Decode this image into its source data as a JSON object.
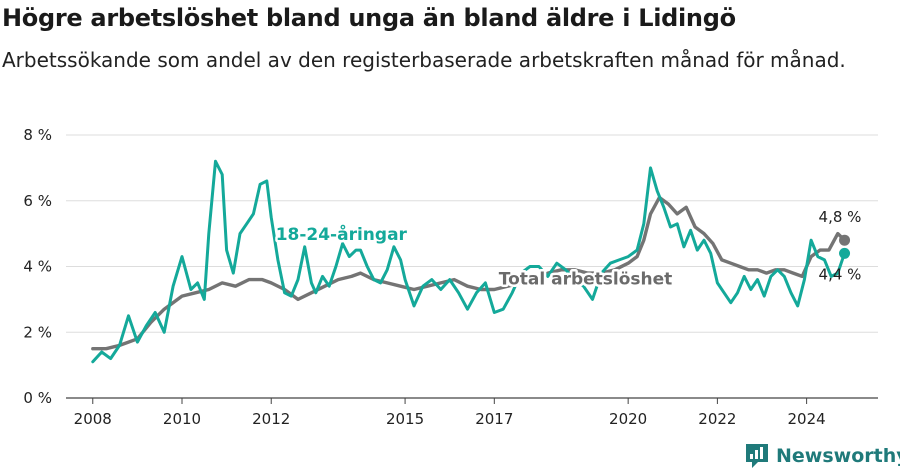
{
  "title": "Högre arbetslöshet bland unga än bland äldre i Lidingö",
  "subtitle": "Arbetssökande som andel av den registerbaserade arbetskraften månad för månad.",
  "brand": {
    "name": "Newsworthy",
    "icon": "newsworthy-logo-icon",
    "color": "#1f7a7a"
  },
  "chart_data": {
    "type": "line",
    "title": "Högre arbetslöshet bland unga än bland äldre i Lidingö",
    "subtitle": "Arbetssökande som andel av den registerbaserade arbetskraften månad för månad.",
    "xlabel": "",
    "ylabel": "",
    "xlim": [
      2007.4,
      2025.6
    ],
    "ylim": [
      0,
      8
    ],
    "x_ticks": [
      2008,
      2010,
      2012,
      2015,
      2017,
      2020,
      2022,
      2024
    ],
    "x_tick_labels": [
      "2008",
      "2010",
      "2012",
      "2015",
      "2017",
      "2020",
      "2022",
      "2024"
    ],
    "y_ticks": [
      0,
      2,
      4,
      6,
      8
    ],
    "y_tick_labels": [
      "0 %",
      "2 %",
      "4 %",
      "6 %",
      "8 %"
    ],
    "grid": "horizontal",
    "series": [
      {
        "name": "18-24-åringar",
        "color": "#14a99a",
        "x": [
          2008.0,
          2008.2,
          2008.4,
          2008.6,
          2008.8,
          2009.0,
          2009.2,
          2009.4,
          2009.6,
          2009.8,
          2010.0,
          2010.2,
          2010.35,
          2010.5,
          2010.6,
          2010.75,
          2010.9,
          2011.0,
          2011.15,
          2011.3,
          2011.45,
          2011.6,
          2011.75,
          2011.9,
          2012.0,
          2012.15,
          2012.3,
          2012.45,
          2012.6,
          2012.75,
          2012.9,
          2013.0,
          2013.15,
          2013.3,
          2013.45,
          2013.6,
          2013.75,
          2013.9,
          2014.0,
          2014.15,
          2014.3,
          2014.45,
          2014.6,
          2014.75,
          2014.9,
          2015.0,
          2015.2,
          2015.4,
          2015.6,
          2015.8,
          2016.0,
          2016.2,
          2016.4,
          2016.6,
          2016.8,
          2017.0,
          2017.2,
          2017.4,
          2017.6,
          2017.8,
          2018.0,
          2018.2,
          2018.4,
          2018.6,
          2018.8,
          2019.0,
          2019.2,
          2019.4,
          2019.6,
          2019.8,
          2020.0,
          2020.2,
          2020.35,
          2020.5,
          2020.65,
          2020.8,
          2020.95,
          2021.1,
          2021.25,
          2021.4,
          2021.55,
          2021.7,
          2021.85,
          2022.0,
          2022.15,
          2022.3,
          2022.45,
          2022.6,
          2022.75,
          2022.9,
          2023.05,
          2023.2,
          2023.35,
          2023.5,
          2023.65,
          2023.8,
          2023.95,
          2024.1,
          2024.25,
          2024.4,
          2024.55,
          2024.7,
          2024.85
        ],
        "values": [
          1.1,
          1.4,
          1.2,
          1.6,
          2.5,
          1.7,
          2.2,
          2.6,
          2.0,
          3.4,
          4.3,
          3.3,
          3.5,
          3.0,
          5.0,
          7.2,
          6.8,
          4.5,
          3.8,
          5.0,
          5.3,
          5.6,
          6.5,
          6.6,
          5.5,
          4.2,
          3.2,
          3.1,
          3.6,
          4.6,
          3.5,
          3.2,
          3.7,
          3.4,
          4.0,
          4.7,
          4.3,
          4.5,
          4.5,
          4.0,
          3.6,
          3.5,
          3.9,
          4.6,
          4.2,
          3.6,
          2.8,
          3.4,
          3.6,
          3.3,
          3.6,
          3.2,
          2.7,
          3.2,
          3.5,
          2.6,
          2.7,
          3.2,
          3.8,
          4.0,
          4.0,
          3.7,
          4.1,
          3.9,
          3.6,
          3.4,
          3.0,
          3.8,
          4.1,
          4.2,
          4.3,
          4.5,
          5.3,
          7.0,
          6.3,
          5.8,
          5.2,
          5.3,
          4.6,
          5.1,
          4.5,
          4.8,
          4.4,
          3.5,
          3.2,
          2.9,
          3.2,
          3.7,
          3.3,
          3.6,
          3.1,
          3.7,
          3.9,
          3.7,
          3.2,
          2.8,
          3.6,
          4.8,
          4.3,
          4.2,
          3.7,
          3.8,
          4.4
        ],
        "end_label": "4,4 %"
      },
      {
        "name": "Total arbetslöshet",
        "color": "#747474",
        "x": [
          2008.0,
          2008.3,
          2008.6,
          2009.0,
          2009.3,
          2009.6,
          2010.0,
          2010.3,
          2010.6,
          2010.9,
          2011.2,
          2011.5,
          2011.8,
          2012.0,
          2012.3,
          2012.6,
          2012.9,
          2013.2,
          2013.5,
          2013.8,
          2014.0,
          2014.3,
          2014.6,
          2014.9,
          2015.2,
          2015.5,
          2015.8,
          2016.1,
          2016.4,
          2016.7,
          2017.0,
          2017.3,
          2017.6,
          2017.9,
          2018.2,
          2018.5,
          2018.8,
          2019.1,
          2019.4,
          2019.7,
          2020.0,
          2020.2,
          2020.35,
          2020.5,
          2020.7,
          2020.9,
          2021.1,
          2021.3,
          2021.5,
          2021.7,
          2021.9,
          2022.1,
          2022.3,
          2022.5,
          2022.7,
          2022.9,
          2023.1,
          2023.3,
          2023.5,
          2023.7,
          2023.9,
          2024.1,
          2024.3,
          2024.5,
          2024.7,
          2024.85
        ],
        "values": [
          1.5,
          1.5,
          1.6,
          1.8,
          2.3,
          2.7,
          3.1,
          3.2,
          3.3,
          3.5,
          3.4,
          3.6,
          3.6,
          3.5,
          3.3,
          3.0,
          3.2,
          3.4,
          3.6,
          3.7,
          3.8,
          3.6,
          3.5,
          3.4,
          3.3,
          3.4,
          3.5,
          3.6,
          3.4,
          3.3,
          3.3,
          3.4,
          3.5,
          3.6,
          3.8,
          3.9,
          3.9,
          3.8,
          3.8,
          3.9,
          4.1,
          4.3,
          4.8,
          5.6,
          6.1,
          5.9,
          5.6,
          5.8,
          5.2,
          5.0,
          4.7,
          4.2,
          4.1,
          4.0,
          3.9,
          3.9,
          3.8,
          3.9,
          3.9,
          3.8,
          3.7,
          4.3,
          4.5,
          4.5,
          5.0,
          4.8
        ],
        "end_label": "4,8 %"
      }
    ]
  }
}
